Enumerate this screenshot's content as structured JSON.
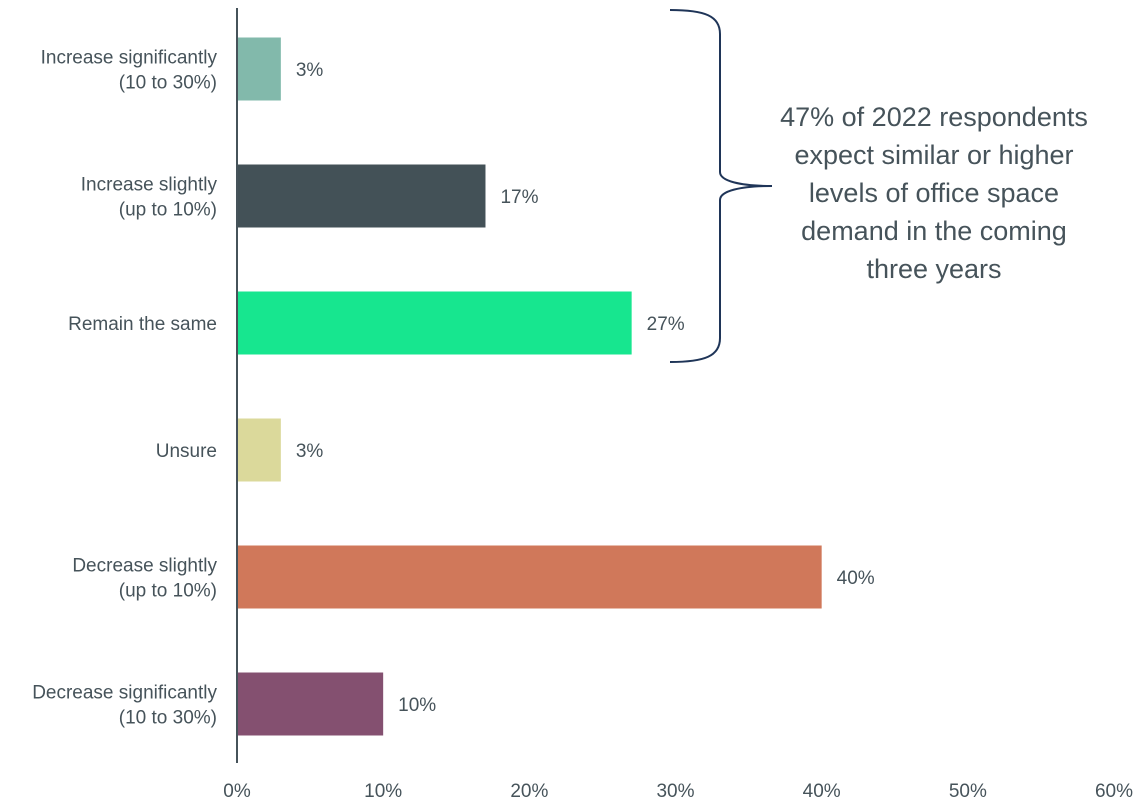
{
  "chart_data": {
    "type": "bar",
    "orientation": "horizontal",
    "title": "",
    "xlabel": "",
    "ylabel": "",
    "xlim": [
      0,
      60
    ],
    "grid": false,
    "legend": "none",
    "categories": [
      [
        "Increase significantly",
        "(10 to 30%)"
      ],
      [
        "Increase slightly",
        "(up to 10%)"
      ],
      [
        "Remain the same"
      ],
      [
        "Unsure"
      ],
      [
        "Decrease slightly",
        "(up to 10%)"
      ],
      [
        "Decrease significantly",
        "(10 to 30%)"
      ]
    ],
    "values": [
      3,
      17,
      27,
      3,
      40,
      10
    ],
    "value_labels": [
      "3%",
      "17%",
      "27%",
      "3%",
      "40%",
      "10%"
    ],
    "colors": [
      "#82b9ab",
      "#435157",
      "#17e68f",
      "#dbd99b",
      "#d0785a",
      "#845070"
    ],
    "x_ticks": [
      {
        "value": 0,
        "label": "0%"
      },
      {
        "value": 10,
        "label": "10%"
      },
      {
        "value": 20,
        "label": "20%"
      },
      {
        "value": 30,
        "label": "30%"
      },
      {
        "value": 40,
        "label": "40%"
      },
      {
        "value": 50,
        "label": "50%"
      },
      {
        "value": 60,
        "label": "60%"
      }
    ],
    "annotation": {
      "lines": [
        "47% of 2022 respondents",
        "expect similar or higher",
        "levels of office space",
        "demand in the coming",
        "three years"
      ],
      "bracket_covers": [
        0,
        1,
        2
      ],
      "bracket_color": "#1f3558"
    }
  }
}
